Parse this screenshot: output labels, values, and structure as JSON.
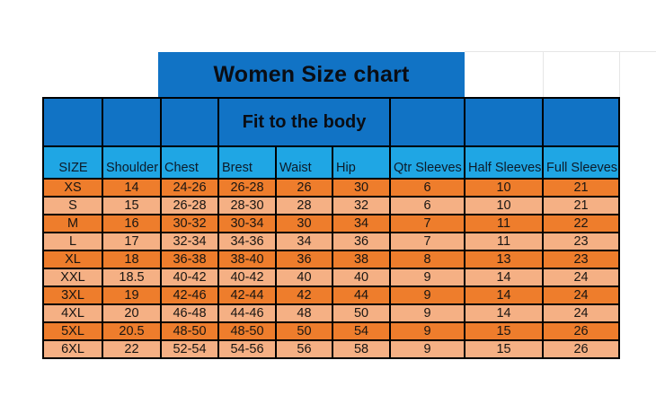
{
  "chart_data": {
    "type": "table",
    "title": "Women Size chart",
    "subtitle": "Fit to the body",
    "subtitle_spans_columns": [
      "Brest",
      "Waist",
      "Hip"
    ],
    "columns": [
      "SIZE",
      "Shoulder",
      "Chest",
      "Brest",
      "Waist",
      "Hip",
      "Qtr Sleeves",
      "Half Sleeves",
      "Full Sleeves"
    ],
    "rows": [
      [
        "XS",
        "14",
        "24-26",
        "26-28",
        "26",
        "30",
        "6",
        "10",
        "21"
      ],
      [
        "S",
        "15",
        "26-28",
        "28-30",
        "28",
        "32",
        "6",
        "10",
        "21"
      ],
      [
        "M",
        "16",
        "30-32",
        "30-34",
        "30",
        "34",
        "7",
        "11",
        "22"
      ],
      [
        "L",
        "17",
        "32-34",
        "34-36",
        "34",
        "36",
        "7",
        "11",
        "23"
      ],
      [
        "XL",
        "18",
        "36-38",
        "38-40",
        "36",
        "38",
        "8",
        "13",
        "23"
      ],
      [
        "XXL",
        "18.5",
        "40-42",
        "40-42",
        "40",
        "40",
        "9",
        "14",
        "24"
      ],
      [
        "3XL",
        "19",
        "42-46",
        "42-44",
        "42",
        "44",
        "9",
        "14",
        "24"
      ],
      [
        "4XL",
        "20",
        "46-48",
        "44-46",
        "48",
        "50",
        "9",
        "14",
        "24"
      ],
      [
        "5XL",
        "20.5",
        "48-50",
        "48-50",
        "50",
        "54",
        "9",
        "15",
        "26"
      ],
      [
        "6XL",
        "22",
        "52-54",
        "54-56",
        "56",
        "58",
        "9",
        "15",
        "26"
      ]
    ],
    "colors": {
      "header_dark_blue": "#1173C5",
      "header_light_blue": "#1FA6E4",
      "row_dark_orange": "#EE7D2C",
      "row_light_orange": "#F5B084",
      "border": "#000000"
    }
  }
}
